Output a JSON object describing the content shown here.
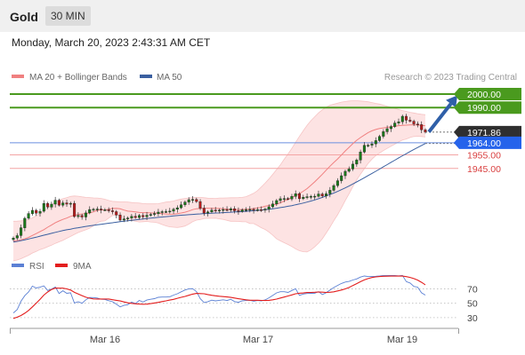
{
  "header": {
    "symbol": "Gold",
    "interval": "30 MIN"
  },
  "datetime": "Monday, March 20, 2023 2:43:31 AM CET",
  "legend": {
    "items": [
      {
        "label": "MA 20 + Bollinger Bands",
        "color": "#f08080"
      },
      {
        "label": "MA 50",
        "color": "#3a5fa0"
      }
    ],
    "copyright": "Research © 2023 Trading Central"
  },
  "chart_data": [
    {
      "type": "candlestick",
      "title": "",
      "ylim": [
        1920,
        2006
      ],
      "levels": [
        {
          "value": 2000.0,
          "label": "2000.00",
          "kind": "resistance",
          "color": "#4a9a1e"
        },
        {
          "value": 1990.0,
          "label": "1990.00",
          "kind": "resistance",
          "color": "#4a9a1e"
        },
        {
          "value": 1971.86,
          "label": "1971.86",
          "kind": "last-price",
          "color": "#2f2f2f"
        },
        {
          "value": 1964.0,
          "label": "1964.00",
          "kind": "pivot",
          "color": "#2563eb"
        },
        {
          "value": 1955.0,
          "label": "1955.00",
          "kind": "support",
          "color": "#d94040"
        },
        {
          "value": 1945.0,
          "label": "1945.00",
          "kind": "support",
          "color": "#d94040"
        }
      ],
      "forecast_arrow": {
        "from": 1972,
        "to": 1999,
        "direction": "up",
        "color": "#2f5fa8"
      },
      "close": [
        1893.5,
        1895.3,
        1901.1,
        1908.1,
        1911.6,
        1914.0,
        1911.9,
        1913.3,
        1919.1,
        1916.4,
        1918.6,
        1921.5,
        1917.8,
        1919.5,
        1918.6,
        1919.2,
        1909.4,
        1910.2,
        1909.1,
        1912.1,
        1914.6,
        1914.8,
        1915.0,
        1914.3,
        1914.4,
        1913.7,
        1913.0,
        1910.6,
        1906.8,
        1907.7,
        1908.3,
        1909.6,
        1908.7,
        1910.2,
        1909.3,
        1910.4,
        1911.0,
        1911.6,
        1912.7,
        1913.0,
        1913.1,
        1913.4,
        1914.8,
        1915.9,
        1918.1,
        1920.1,
        1921.9,
        1922.1,
        1920.5,
        1915.6,
        1912.0,
        1912.8,
        1914.1,
        1913.7,
        1914.1,
        1914.6,
        1914.2,
        1915.2,
        1913.7,
        1913.2,
        1914.3,
        1914.5,
        1914.7,
        1914.1,
        1914.5,
        1914.3,
        1914.9,
        1916.6,
        1918.7,
        1921.2,
        1922.6,
        1922.7,
        1922.4,
        1924.3,
        1926.3,
        1922.6,
        1923.7,
        1924.1,
        1924.3,
        1924.4,
        1926.1,
        1924.7,
        1926.2,
        1928.8,
        1932.3,
        1935.9,
        1939.6,
        1942.9,
        1944.6,
        1948.2,
        1951.2,
        1957.1,
        1962.1,
        1962.2,
        1963.2,
        1965.6,
        1968.7,
        1972.2,
        1974.4,
        1976.0,
        1978.6,
        1979.5,
        1983.6,
        1980.7,
        1979.9,
        1977.9,
        1977.4,
        1973.6,
        1971.9
      ],
      "ma20": [
        1891.3,
        1891.6,
        1892.2,
        1893.0,
        1894.0,
        1895.4,
        1896.8,
        1898.3,
        1899.7,
        1901.5,
        1903.1,
        1904.9,
        1906.1,
        1907.3,
        1908.3,
        1909.5,
        1910.4,
        1911.0,
        1911.3,
        1911.6,
        1912.1,
        1912.9,
        1914.0,
        1914.4,
        1914.2,
        1914.8,
        1915.4,
        1915.5,
        1915.1,
        1914.2,
        1913.4,
        1913.2,
        1912.8,
        1912.4,
        1912.3,
        1912.3,
        1912.1,
        1912.0,
        1911.8,
        1911.5,
        1911.3,
        1911.1,
        1911.2,
        1911.5,
        1912.0,
        1912.6,
        1913.5,
        1914.5,
        1915.2,
        1915.4,
        1915.6,
        1915.6,
        1915.5,
        1915.5,
        1915.4,
        1915.2,
        1914.9,
        1914.6,
        1914.6,
        1914.6,
        1914.6,
        1914.8,
        1914.8,
        1915.4,
        1915.7,
        1916.2,
        1917.0,
        1917.6,
        1918.1,
        1918.5,
        1919.5,
        1920.9,
        1922.2,
        1923.5,
        1924.9,
        1926.4,
        1928.1,
        1930.1,
        1932.5,
        1935.1,
        1937.9,
        1940.7,
        1943.7,
        1946.6,
        1949.4,
        1952.0,
        1954.9,
        1957.9,
        1960.6,
        1963.3,
        1965.8,
        1967.8,
        1969.7,
        1971.5,
        1972.8,
        1973.8,
        1974.5,
        1975.0,
        1975.4,
        1975.8,
        1976.2,
        1976.6,
        1976.9,
        1977.0,
        1977.2,
        1977.3,
        1977.1,
        1976.8,
        1976.5
      ],
      "bb_upper": [
        1905.9,
        1906.0,
        1906.2,
        1906.5,
        1907.2,
        1908.4,
        1910.0,
        1911.6,
        1913.6,
        1915.9,
        1918.0,
        1920.2,
        1921.5,
        1922.6,
        1923.3,
        1924.3,
        1924.6,
        1924.4,
        1924.0,
        1923.6,
        1923.4,
        1923.2,
        1923.1,
        1922.8,
        1922.2,
        1921.3,
        1920.6,
        1920.4,
        1920.3,
        1920.3,
        1920.1,
        1919.8,
        1919.6,
        1919.4,
        1919.0,
        1918.8,
        1918.8,
        1918.8,
        1918.9,
        1919.5,
        1920.1,
        1920.4,
        1920.9,
        1921.7,
        1922.3,
        1922.8,
        1923.2,
        1923.4,
        1923.6,
        1923.6,
        1923.3,
        1923.0,
        1922.9,
        1922.8,
        1923.1,
        1923.1,
        1923.2,
        1923.3,
        1923.3,
        1923.4,
        1923.6,
        1924.1,
        1925.3,
        1926.6,
        1928.6,
        1931.3,
        1934.1,
        1937.2,
        1940.6,
        1944.1,
        1947.6,
        1951.8,
        1955.7,
        1959.8,
        1964.3,
        1968.7,
        1972.8,
        1976.9,
        1980.3,
        1983.2,
        1986.1,
        1988.4,
        1990.2,
        1991.7,
        1992.5,
        1993.3,
        1994.0,
        1994.5,
        1994.9,
        1995.1,
        1995.1,
        1994.9,
        1994.6,
        1994.3,
        1993.7,
        1993.1,
        1992.6,
        1991.8,
        1991.0,
        1990.2,
        1989.4,
        1988.6,
        1987.8,
        1987.2,
        1986.5,
        1986.0,
        1985.4,
        1985.0,
        1984.7
      ],
      "bb_lower": [
        1876.7,
        1877.2,
        1878.2,
        1879.5,
        1880.8,
        1882.4,
        1883.6,
        1885.0,
        1885.8,
        1887.1,
        1888.2,
        1889.6,
        1890.7,
        1891.9,
        1893.3,
        1894.7,
        1896.2,
        1897.6,
        1898.6,
        1899.6,
        1900.8,
        1902.6,
        1904.9,
        1906.0,
        1906.2,
        1908.3,
        1910.2,
        1910.6,
        1909.9,
        1908.1,
        1906.7,
        1906.6,
        1906.0,
        1905.4,
        1905.6,
        1905.8,
        1905.4,
        1905.2,
        1904.7,
        1903.5,
        1902.5,
        1901.8,
        1901.5,
        1901.3,
        1901.7,
        1902.4,
        1903.8,
        1905.6,
        1906.8,
        1907.2,
        1907.9,
        1908.2,
        1908.1,
        1908.2,
        1907.7,
        1907.3,
        1906.6,
        1905.9,
        1905.9,
        1905.8,
        1905.6,
        1905.5,
        1904.3,
        1904.2,
        1902.8,
        1901.1,
        1899.9,
        1898.0,
        1895.6,
        1892.9,
        1891.4,
        1890.0,
        1888.7,
        1887.2,
        1885.5,
        1884.1,
        1883.4,
        1883.3,
        1884.7,
        1887.0,
        1889.7,
        1893.0,
        1897.2,
        1901.5,
        1906.3,
        1910.7,
        1915.8,
        1921.3,
        1926.3,
        1931.5,
        1936.5,
        1940.7,
        1944.8,
        1948.7,
        1951.9,
        1954.5,
        1956.4,
        1958.2,
        1959.8,
        1961.4,
        1963.0,
        1964.6,
        1966.0,
        1966.8,
        1967.9,
        1968.6,
        1968.8,
        1968.6,
        1968.3
      ],
      "ma50": [
        1890.5,
        1891.0,
        1891.6,
        1892.2,
        1892.8,
        1893.5,
        1894.1,
        1894.9,
        1895.6,
        1896.3,
        1897.0,
        1897.7,
        1898.4,
        1899.0,
        1899.6,
        1900.1,
        1900.7,
        1901.1,
        1901.6,
        1902.1,
        1902.5,
        1902.9,
        1903.3,
        1903.7,
        1904.1,
        1904.5,
        1904.8,
        1905.2,
        1905.6,
        1905.9,
        1906.3,
        1906.6,
        1906.9,
        1907.3,
        1907.6,
        1907.9,
        1908.2,
        1908.5,
        1908.8,
        1909.1,
        1909.3,
        1909.6,
        1909.9,
        1910.1,
        1910.4,
        1910.6,
        1910.8,
        1911.0,
        1911.2,
        1911.4,
        1911.6,
        1911.7,
        1911.9,
        1912.0,
        1912.1,
        1912.3,
        1912.4,
        1912.6,
        1912.8,
        1912.9,
        1913.1,
        1913.3,
        1913.5,
        1913.7,
        1913.9,
        1914.2,
        1914.5,
        1914.8,
        1915.2,
        1915.6,
        1916.0,
        1916.5,
        1917.0,
        1917.5,
        1918.1,
        1918.7,
        1919.4,
        1920.1,
        1920.9,
        1921.7,
        1922.6,
        1923.6,
        1924.6,
        1925.7,
        1926.8,
        1928.0,
        1929.3,
        1930.6,
        1932.0,
        1933.5,
        1935.0,
        1936.5,
        1938.1,
        1939.7,
        1941.3,
        1942.9,
        1944.5,
        1946.2,
        1947.8,
        1949.5,
        1951.1,
        1952.8,
        1954.4,
        1955.9,
        1957.5,
        1959.0,
        1960.5,
        1962.0,
        1963.4
      ]
    },
    {
      "type": "line",
      "title": "",
      "legend": [
        "RSI",
        "9MA"
      ],
      "ylim": [
        15,
        88
      ],
      "yticks": [
        70,
        50,
        30
      ],
      "x_labels": [
        "Mar 16",
        "Mar 17",
        "Mar 19"
      ],
      "series": [
        {
          "name": "RSI",
          "color": "#5b80d4",
          "values": [
            36.5,
            41.1,
            52.9,
            60.6,
            65.7,
            73.9,
            71.3,
            72.4,
            74.3,
            67.8,
            69.7,
            72.7,
            63.6,
            67.4,
            63.9,
            64.6,
            50.4,
            52.1,
            50.0,
            54.8,
            58.1,
            57.9,
            57.3,
            55.6,
            55.3,
            53.6,
            52.1,
            48.6,
            44.9,
            47.1,
            48.0,
            51.6,
            49.5,
            54.0,
            51.7,
            54.5,
            55.6,
            56.5,
            58.3,
            58.7,
            58.7,
            59.1,
            61.4,
            63.2,
            66.0,
            68.5,
            70.2,
            70.3,
            66.3,
            56.3,
            51.0,
            52.2,
            54.3,
            53.3,
            54.1,
            54.8,
            53.9,
            55.6,
            52.4,
            51.4,
            53.4,
            53.8,
            54.2,
            52.8,
            53.9,
            53.4,
            54.6,
            57.6,
            60.9,
            64.5,
            66.1,
            66.1,
            65.1,
            67.8,
            70.3,
            61.0,
            62.9,
            63.6,
            63.9,
            64.0,
            66.2,
            62.2,
            64.8,
            68.3,
            71.9,
            74.9,
            77.6,
            79.6,
            80.5,
            82.4,
            83.9,
            86.5,
            88.0,
            87.3,
            87.2,
            87.6,
            88.1,
            88.7,
            88.7,
            88.6,
            88.8,
            88.2,
            88.9,
            80.2,
            78.2,
            73.5,
            72.4,
            64.6,
            61.4
          ]
        },
        {
          "name": "9MA",
          "color": "#e31d1d",
          "values": [
            28.9,
            30.6,
            32.9,
            36.2,
            40.0,
            45.0,
            50.2,
            55.4,
            61.4,
            65.7,
            69.2,
            71.2,
            71.0,
            71.0,
            70.0,
            68.4,
            65.2,
            63.0,
            60.7,
            58.4,
            57.1,
            56.1,
            56.0,
            56.0,
            56.0,
            55.9,
            55.0,
            54.1,
            53.2,
            51.9,
            50.6,
            49.9,
            49.3,
            48.9,
            48.7,
            48.8,
            49.5,
            50.4,
            51.3,
            52.4,
            53.4,
            54.5,
            55.4,
            56.9,
            58.3,
            59.6,
            61.1,
            62.7,
            63.8,
            63.5,
            63.3,
            62.2,
            61.2,
            60.4,
            59.8,
            59.3,
            58.8,
            58.2,
            57.3,
            56.3,
            55.6,
            54.9,
            54.2,
            54.2,
            54.2,
            54.0,
            53.8,
            54.1,
            54.8,
            55.8,
            57.3,
            58.7,
            60.1,
            61.7,
            63.2,
            64.0,
            64.4,
            65.0,
            65.1,
            65.3,
            65.7,
            65.5,
            65.1,
            65.3,
            66.0,
            67.2,
            68.4,
            70.1,
            72.1,
            74.8,
            77.3,
            80.1,
            82.5,
            84.4,
            85.9,
            86.8,
            87.3,
            87.6,
            87.8,
            87.9,
            87.9,
            87.9,
            87.9,
            87.1,
            86.0,
            84.4,
            82.3,
            79.2,
            75.7
          ]
        }
      ]
    }
  ]
}
